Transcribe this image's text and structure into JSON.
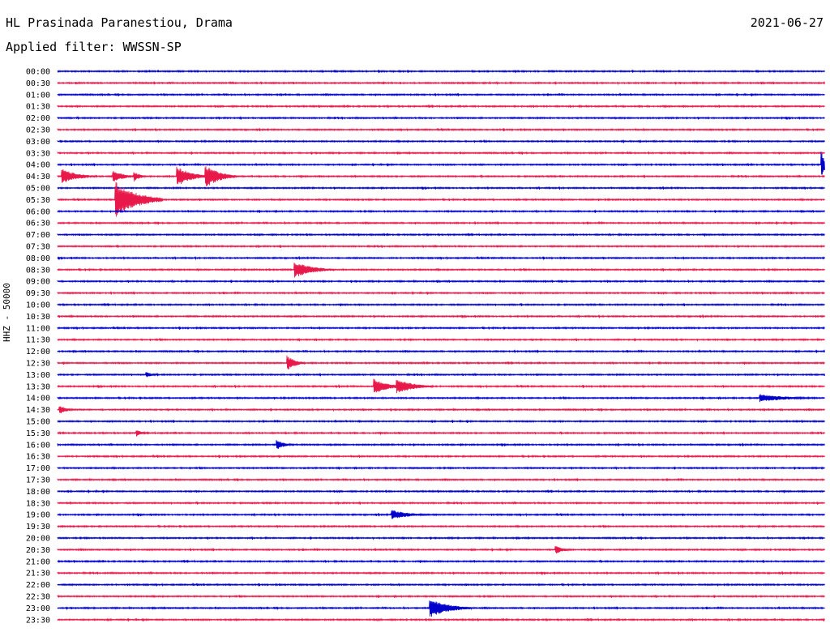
{
  "header": {
    "station": "HL Prasinada Paranestiou, Drama",
    "date": "2021-06-27",
    "filter_label": "Applied filter: WWSSN-SP",
    "channel_label": "HHZ - 50000"
  },
  "chart_data": {
    "type": "seismogram",
    "title": "HL Prasinada Paranestiou, Drama",
    "date": "2021-06-27",
    "filter": "WWSSN-SP",
    "ylabel": "HHZ - 50000",
    "trace_colors": [
      "#0000cc",
      "#e8194a"
    ],
    "trace_minutes": 30,
    "rows": [
      "00:00",
      "00:30",
      "01:00",
      "01:30",
      "02:00",
      "02:30",
      "03:00",
      "03:30",
      "04:00",
      "04:30",
      "05:00",
      "05:30",
      "06:00",
      "06:30",
      "07:00",
      "07:30",
      "08:00",
      "08:30",
      "09:00",
      "09:30",
      "10:00",
      "10:30",
      "11:00",
      "11:30",
      "12:00",
      "12:30",
      "13:00",
      "13:30",
      "14:00",
      "14:30",
      "15:00",
      "15:30",
      "16:00",
      "16:30",
      "17:00",
      "17:30",
      "18:00",
      "18:30",
      "19:00",
      "19:30",
      "20:00",
      "20:30",
      "21:00",
      "21:30",
      "22:00",
      "22:30",
      "23:00",
      "23:30"
    ],
    "events": [
      {
        "row": "04:00",
        "minute": 29.9,
        "amplitude": 14,
        "duration_min": 0.3
      },
      {
        "row": "04:30",
        "minute": 0.2,
        "amplitude": 9,
        "duration_min": 1.3
      },
      {
        "row": "04:30",
        "minute": 2.2,
        "amplitude": 7,
        "duration_min": 0.9
      },
      {
        "row": "04:30",
        "minute": 3.0,
        "amplitude": 6,
        "duration_min": 0.5
      },
      {
        "row": "04:30",
        "minute": 4.7,
        "amplitude": 12,
        "duration_min": 1.2
      },
      {
        "row": "04:30",
        "minute": 5.8,
        "amplitude": 14,
        "duration_min": 1.2
      },
      {
        "row": "05:30",
        "minute": 2.3,
        "amplitude": 22,
        "duration_min": 1.8
      },
      {
        "row": "08:30",
        "minute": 9.3,
        "amplitude": 10,
        "duration_min": 1.5
      },
      {
        "row": "12:30",
        "minute": 9.0,
        "amplitude": 9,
        "duration_min": 0.7
      },
      {
        "row": "13:00",
        "minute": 3.5,
        "amplitude": 3,
        "duration_min": 0.6
      },
      {
        "row": "13:30",
        "minute": 12.4,
        "amplitude": 9,
        "duration_min": 1.2
      },
      {
        "row": "13:30",
        "minute": 13.3,
        "amplitude": 9,
        "duration_min": 1.4
      },
      {
        "row": "14:00",
        "minute": 27.5,
        "amplitude": 5,
        "duration_min": 2.2
      },
      {
        "row": "14:30",
        "minute": 0.1,
        "amplitude": 5,
        "duration_min": 0.6
      },
      {
        "row": "15:30",
        "minute": 3.1,
        "amplitude": 4,
        "duration_min": 0.4
      },
      {
        "row": "16:00",
        "minute": 8.6,
        "amplitude": 6,
        "duration_min": 0.6
      },
      {
        "row": "19:00",
        "minute": 13.1,
        "amplitude": 6,
        "duration_min": 1.4
      },
      {
        "row": "20:30",
        "minute": 19.5,
        "amplitude": 5,
        "duration_min": 0.7
      },
      {
        "row": "23:00",
        "minute": 14.6,
        "amplitude": 11,
        "duration_min": 1.6
      }
    ]
  }
}
